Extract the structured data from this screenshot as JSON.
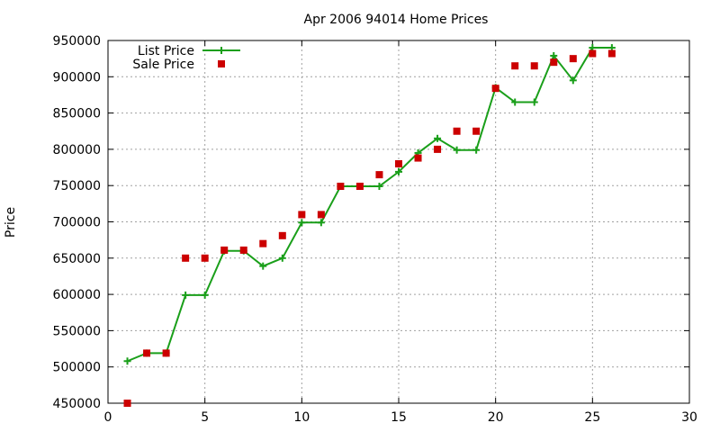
{
  "chart_data": {
    "type": "line",
    "title": "Apr 2006 94014 Home Prices",
    "xlabel": "",
    "ylabel": "Price",
    "xlim": [
      0,
      30
    ],
    "ylim": [
      450000,
      950000
    ],
    "xticks": [
      "0",
      "5",
      "10",
      "15",
      "20",
      "25",
      "30"
    ],
    "yticks": [
      "450000",
      "500000",
      "550000",
      "600000",
      "650000",
      "700000",
      "750000",
      "800000",
      "850000",
      "900000",
      "950000"
    ],
    "grid": true,
    "legend_position": "top-left",
    "series": [
      {
        "name": "List Price",
        "style": "line+cross",
        "color": "#1a9f1a",
        "x": [
          1,
          2,
          3,
          4,
          5,
          6,
          7,
          8,
          9,
          10,
          11,
          12,
          13,
          14,
          15,
          16,
          17,
          18,
          19,
          20,
          21,
          22,
          23,
          24,
          25,
          26
        ],
        "y": [
          508000,
          519000,
          519000,
          599000,
          599000,
          660000,
          660000,
          639000,
          650000,
          699000,
          699000,
          749000,
          749000,
          749000,
          769000,
          795000,
          815000,
          799000,
          799000,
          885000,
          865000,
          865000,
          929000,
          895000,
          940000,
          940000
        ]
      },
      {
        "name": "Sale Price",
        "style": "square",
        "color": "#cc0000",
        "x": [
          1,
          2,
          3,
          4,
          5,
          6,
          7,
          8,
          9,
          10,
          11,
          12,
          13,
          14,
          15,
          16,
          17,
          18,
          19,
          20,
          21,
          22,
          23,
          24,
          25,
          26
        ],
        "y": [
          450000,
          519000,
          519000,
          650000,
          650000,
          661000,
          661000,
          670000,
          681000,
          710000,
          710000,
          749000,
          749000,
          765000,
          780000,
          788000,
          800000,
          825000,
          825000,
          884000,
          915000,
          915000,
          920000,
          925000,
          932000,
          932000
        ]
      }
    ]
  }
}
